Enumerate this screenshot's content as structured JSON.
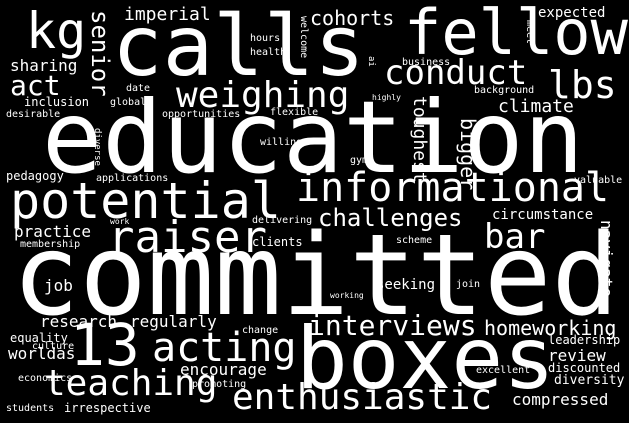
{
  "background": "#000000",
  "text_color": "#ffffff",
  "words": [
    {
      "id": "committed",
      "text": "committed",
      "vertical": false
    },
    {
      "id": "education",
      "text": "education",
      "vertical": false
    },
    {
      "id": "calls",
      "text": "calls",
      "vertical": false
    },
    {
      "id": "boxes",
      "text": "boxes",
      "vertical": false
    },
    {
      "id": "fellow",
      "text": "fellow",
      "vertical": false
    },
    {
      "id": "potential",
      "text": "potential",
      "vertical": false
    },
    {
      "id": "informational",
      "text": "informational",
      "vertical": false
    },
    {
      "id": "13",
      "text": "13",
      "vertical": false
    },
    {
      "id": "kg",
      "text": "kg",
      "vertical": false
    },
    {
      "id": "raiser",
      "text": "raiser",
      "vertical": false
    },
    {
      "id": "teaching",
      "text": "teaching",
      "vertical": false
    },
    {
      "id": "acting",
      "text": "acting",
      "vertical": false
    },
    {
      "id": "enthusiastic",
      "text": "enthusiastic",
      "vertical": false
    },
    {
      "id": "weighing",
      "text": "weighing",
      "vertical": false
    },
    {
      "id": "conduct",
      "text": "conduct",
      "vertical": false
    },
    {
      "id": "lbs",
      "text": "lbs",
      "vertical": false
    },
    {
      "id": "interviews",
      "text": "interviews",
      "vertical": false
    },
    {
      "id": "bar",
      "text": "bar",
      "vertical": false
    },
    {
      "id": "challenges",
      "text": "challenges",
      "vertical": false
    },
    {
      "id": "act",
      "text": "act",
      "vertical": false
    },
    {
      "id": "senior",
      "text": "senior",
      "vertical": true
    },
    {
      "id": "homeworking",
      "text": "homeworking",
      "vertical": false
    },
    {
      "id": "bigger",
      "text": "bigger",
      "vertical": true
    },
    {
      "id": "cohorts",
      "text": "cohorts",
      "vertical": false
    },
    {
      "id": "imperial",
      "text": "imperial",
      "vertical": false
    },
    {
      "id": "climate",
      "text": "climate",
      "vertical": false
    },
    {
      "id": "worldas",
      "text": "worldas",
      "vertical": false
    },
    {
      "id": "research",
      "text": "research",
      "vertical": false
    },
    {
      "id": "regularly",
      "text": "regularly",
      "vertical": false
    },
    {
      "id": "encourage",
      "text": "encourage",
      "vertical": false
    },
    {
      "id": "practice",
      "text": "practice",
      "vertical": false
    },
    {
      "id": "sharing",
      "text": "sharing",
      "vertical": false
    },
    {
      "id": "toughest",
      "text": "toughest",
      "vertical": true
    },
    {
      "id": "navigate",
      "text": "navigate",
      "vertical": true
    },
    {
      "id": "circumstance",
      "text": "circumstance",
      "vertical": false
    },
    {
      "id": "compressed",
      "text": "compressed",
      "vertical": false
    },
    {
      "id": "review",
      "text": "review",
      "vertical": false
    },
    {
      "id": "job",
      "text": "job",
      "vertical": false
    },
    {
      "id": "expected",
      "text": "expected",
      "vertical": false
    },
    {
      "id": "diversity",
      "text": "diversity",
      "vertical": false
    },
    {
      "id": "seeking",
      "text": "seeking",
      "vertical": false
    },
    {
      "id": "inclusion",
      "text": "inclusion",
      "vertical": false
    },
    {
      "id": "pedagogy",
      "text": "pedagogy",
      "vertical": false
    },
    {
      "id": "applications",
      "text": "applications",
      "vertical": false
    },
    {
      "id": "opportunities",
      "text": "opportunities",
      "vertical": false
    },
    {
      "id": "flexible",
      "text": "flexible",
      "vertical": false
    },
    {
      "id": "leadership",
      "text": "leadership",
      "vertical": false
    },
    {
      "id": "discounted",
      "text": "discounted",
      "vertical": false
    },
    {
      "id": "equality",
      "text": "equality",
      "vertical": false
    },
    {
      "id": "clients",
      "text": "clients",
      "vertical": false
    },
    {
      "id": "membership",
      "text": "membership",
      "vertical": false
    },
    {
      "id": "irrespective",
      "text": "irrespective",
      "vertical": false
    },
    {
      "id": "promoting",
      "text": "promoting",
      "vertical": false
    },
    {
      "id": "excellent",
      "text": "excellent",
      "vertical": false
    },
    {
      "id": "background",
      "text": "background",
      "vertical": false
    },
    {
      "id": "valuable",
      "text": "valuable",
      "vertical": false
    },
    {
      "id": "delivering",
      "text": "delivering",
      "vertical": false
    },
    {
      "id": "culture",
      "text": "culture",
      "vertical": false
    },
    {
      "id": "economics",
      "text": "economics",
      "vertical": false
    },
    {
      "id": "students",
      "text": "students",
      "vertical": false
    },
    {
      "id": "desirable",
      "text": "desirable",
      "vertical": false
    },
    {
      "id": "global",
      "text": "global",
      "vertical": false
    },
    {
      "id": "willing",
      "text": "willing",
      "vertical": false
    },
    {
      "id": "hours",
      "text": "hours",
      "vertical": false
    },
    {
      "id": "health",
      "text": "health",
      "vertical": false
    },
    {
      "id": "date",
      "text": "date",
      "vertical": false
    },
    {
      "id": "gym",
      "text": "gym",
      "vertical": false
    },
    {
      "id": "change",
      "text": "change",
      "vertical": false
    },
    {
      "id": "scheme",
      "text": "scheme",
      "vertical": false
    },
    {
      "id": "business",
      "text": "business",
      "vertical": false
    },
    {
      "id": "highly",
      "text": "highly",
      "vertical": false
    },
    {
      "id": "working",
      "text": "working",
      "vertical": false
    },
    {
      "id": "join",
      "text": "join",
      "vertical": false
    },
    {
      "id": "work",
      "text": "work",
      "vertical": false
    },
    {
      "id": "welcome",
      "text": "welcome",
      "vertical": true
    },
    {
      "id": "meet",
      "text": "meet",
      "vertical": true
    },
    {
      "id": "diverse",
      "text": "diverse",
      "vertical": true
    },
    {
      "id": "ai",
      "text": "ai",
      "vertical": true
    }
  ]
}
